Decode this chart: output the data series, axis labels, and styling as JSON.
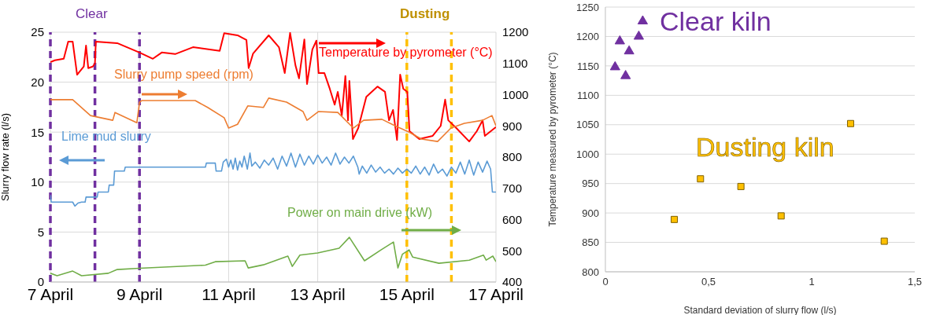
{
  "chart_data": [
    {
      "type": "line",
      "ylabel": "Slurry flow rate (l/s)",
      "xlim": [
        "--04-07",
        "--04-17"
      ],
      "xticks": [
        {
          "value": "--04-07",
          "label": "7 April"
        },
        {
          "value": "--04-09",
          "label": "9 April"
        },
        {
          "value": "--04-11",
          "label": "11 April"
        },
        {
          "value": "--04-13",
          "label": "13 April"
        },
        {
          "value": "--04-15",
          "label": "15 April"
        },
        {
          "value": "--04-17",
          "label": "17 April"
        }
      ],
      "ylim": [
        0,
        25
      ],
      "yticks": [
        0,
        5,
        10,
        15,
        20,
        25
      ],
      "y2lim": [
        400,
        1200
      ],
      "y2ticks": [
        400,
        500,
        600,
        700,
        800,
        900,
        1000,
        1100,
        1200
      ],
      "grid": true,
      "annotations": [
        "Clear",
        "Dusting"
      ],
      "ref_lines": [
        {
          "axis": "x",
          "value": "--04-07",
          "label": null,
          "color": "#7030a0",
          "line_style": "dashed"
        },
        {
          "axis": "x",
          "value": "--04-08",
          "label": null,
          "color": "#7030a0",
          "line_style": "dashed"
        },
        {
          "axis": "x",
          "value": "--04-09",
          "label": null,
          "color": "#7030a0",
          "line_style": "dashed"
        },
        {
          "axis": "x",
          "value": "--04-15",
          "label": null,
          "color": "#ffc000",
          "line_style": "dashed"
        },
        {
          "axis": "x",
          "value": "--04-16",
          "label": null,
          "color": "#ffc000",
          "line_style": "dashed"
        }
      ],
      "series": [
        {
          "name": "Temperature by pyrometer (°C)",
          "color": "#ff0000",
          "axis": "y2",
          "x": [
            "--04-07",
            "--04-07T02:24",
            "--04-07T07:12",
            "--04-07T09:36",
            "--04-07T12:00",
            "--04-07T14:24",
            "--04-07T18:00",
            "--04-07T19:12",
            "--04-07T20:24",
            "--04-07T22:48",
            "--04-08",
            "--04-08T00:29",
            "--04-08T12:00",
            "--04-09",
            "--04-09T07:12",
            "--04-09T12:00",
            "--04-09T19:12",
            "--04-10T04:48",
            "--04-10T19:12",
            "--04-10T21:36",
            "--04-11T04:48",
            "--04-11T09:36",
            "--04-11T10:48",
            "--04-11T13:12",
            "--04-11T21:36",
            "--04-12T03:07",
            "--04-12T06:14",
            "--04-12T09:07",
            "--04-12T12:00",
            "--04-12T13:55",
            "--04-12T16:48",
            "--04-12T18:14",
            "--04-12T21:07",
            "--04-12T23:17",
            "--04-13T00:29",
            "--04-13T03:36",
            "--04-13T06:29",
            "--04-13T09:07",
            "--04-13T10:48",
            "--04-13T12:58",
            "--04-13T14:53",
            "--04-13T16:19",
            "--04-13T17:02",
            "--04-13T18:58",
            "--04-13T21:50",
            "--04-14T02:10",
            "--04-14T08:10",
            "--04-14T12:14",
            "--04-14T14:24",
            "--04-14T16:34",
            "--04-14T18:43",
            "--04-14T20:24",
            "--04-14T22:05",
            "--04-15T00:14",
            "--04-15T01:26",
            "--04-15T06:43",
            "--04-15T13:55",
            "--04-15T18:14",
            "--04-15T20:38",
            "--04-15T22:19",
            "--04-16T02:38",
            "--04-16T09:36",
            "--04-16T13:41",
            "--04-16T16:48",
            "--04-16T18:00",
            "--04-17"
          ],
          "values": [
            1104,
            1110,
            1115,
            1170,
            1170,
            1064,
            1090,
            1157,
            1085,
            1090,
            1100,
            1170,
            1165,
            1135,
            1115,
            1135,
            1130,
            1152,
            1140,
            1197,
            1190,
            1175,
            1085,
            1132,
            1190,
            1152,
            1069,
            1198,
            1094,
            1052,
            1177,
            1034,
            1145,
            1173,
            1069,
            1069,
            1019,
            968,
            1009,
            933,
            1060,
            918,
            1044,
            858,
            893,
            993,
            1026,
            1009,
            918,
            951,
            855,
            1064,
            1019,
            1009,
            883,
            858,
            868,
            900,
            984,
            918,
            893,
            850,
            883,
            918,
            868,
            896
          ]
        },
        {
          "name": "Slurry pump speed (rpm)",
          "color": "#ed7d31",
          "axis": "y2",
          "x": [
            "--04-07",
            "--04-07T12:00",
            "--04-07T21:36",
            "--04-08T09:36",
            "--04-08T10:48",
            "--04-08T22:34",
            "--04-09",
            "--04-09T01:12",
            "--04-10T06:00",
            "--04-10T12:43",
            "--04-10T21:36",
            "--04-11",
            "--04-11T04:48",
            "--04-11T10:19",
            "--04-11T18:43",
            "--04-11T21:36",
            "--04-12T07:12",
            "--04-12T16:05",
            "--04-12T18:14",
            "--04-13T00:29",
            "--04-13T10:48",
            "--04-13T19:12",
            "--04-14T00:43",
            "--04-14T10:34",
            "--04-14T17:46",
            "--04-15T01:12",
            "--04-15T07:55",
            "--04-15T16:34",
            "--04-15T23:46",
            "--04-16T06:58",
            "--04-16T16:48",
            "--04-16T21:50",
            "--04-17"
          ],
          "values": [
            984,
            984,
            933,
            918,
            943,
            910,
            976,
            981,
            981,
            959,
            926,
            893,
            905,
            964,
            959,
            989,
            976,
            946,
            918,
            946,
            943,
            893,
            918,
            921,
            900,
            880,
            858,
            850,
            893,
            908,
            918,
            933,
            900
          ]
        },
        {
          "name": "Lime mud slurry",
          "color": "#5b9bd5",
          "x": [
            "--04-07",
            "--04-07T00:29",
            "--04-07T12:00",
            "--04-07T13:12",
            "--04-07T14:53",
            "--04-07T16:48",
            "--04-07T18:43",
            "--04-07T19:12",
            "--04-08T01:12",
            "--04-08T01:41",
            "--04-08T07:12",
            "--04-08T07:41",
            "--04-08T10:05",
            "--04-08T10:34",
            "--04-08T15:50",
            "--04-08T16:19",
            "--04-10T11:31",
            "--04-10T12:00",
            "--04-10T16:48",
            "--04-10T17:17",
            "--04-10T20:10",
            "--04-10T21:07",
            "--04-10T22:48",
            "--04-11",
            "--04-11T01:12",
            "--04-11T02:24",
            "--04-11T03:36",
            "--04-11T04:48",
            "--04-11T06:00",
            "--04-11T07:12",
            "--04-11T08:24",
            "--04-11T10:05",
            "--04-11T11:31",
            "--04-11T12:29",
            "--04-11T14:24",
            "--04-11T16:48",
            "--04-11T19:12",
            "--04-11T21:36",
            "--04-12",
            "--04-12T02:24",
            "--04-12T04:48",
            "--04-12T07:12",
            "--04-12T09:36",
            "--04-12T12:00",
            "--04-12T14:24",
            "--04-12T16:48",
            "--04-12T19:12",
            "--04-12T21:36",
            "--04-13",
            "--04-13T02:24",
            "--04-13T04:48",
            "--04-13T07:12",
            "--04-13T09:36",
            "--04-13T12:00",
            "--04-13T14:24",
            "--04-13T16:48",
            "--04-13T19:12",
            "--04-13T21:36",
            "--04-13T22:19",
            "--04-14",
            "--04-14T02:24",
            "--04-14T04:48",
            "--04-14T07:12",
            "--04-14T09:36",
            "--04-14T12:00",
            "--04-14T14:24",
            "--04-14T16:48",
            "--04-14T19:12",
            "--04-14T21:36",
            "--04-15",
            "--04-15T02:24",
            "--04-15T04:48",
            "--04-15T07:12",
            "--04-15T09:36",
            "--04-15T12:00",
            "--04-15T14:24",
            "--04-15T16:48",
            "--04-15T19:12",
            "--04-15T21:36",
            "--04-16",
            "--04-16T02:24",
            "--04-16T04:48",
            "--04-16T07:12",
            "--04-16T09:36",
            "--04-16T12:00",
            "--04-16T14:24",
            "--04-16T16:48",
            "--04-16T19:12",
            "--04-16T21:07",
            "--04-16T22:05",
            "--04-17"
          ],
          "values": [
            8.7,
            8.0,
            8.0,
            7.6,
            7.9,
            8.0,
            8.0,
            8.5,
            8.5,
            9.0,
            9.0,
            9.7,
            9.7,
            11.1,
            11.1,
            11.5,
            11.5,
            11.9,
            11.9,
            11.1,
            11.1,
            12.0,
            12.3,
            11.5,
            12.2,
            11.3,
            12.4,
            11.2,
            12.1,
            11.5,
            12.6,
            11.3,
            12.9,
            11.6,
            12.0,
            11.4,
            12.2,
            11.7,
            12.4,
            11.3,
            12.6,
            11.6,
            12.9,
            11.5,
            12.8,
            11.7,
            12.6,
            11.8,
            12.7,
            11.9,
            12.5,
            11.7,
            12.9,
            11.8,
            12.5,
            11.9,
            12.6,
            11.5,
            10.8,
            11.6,
            10.9,
            11.7,
            11.0,
            11.5,
            10.9,
            11.3,
            10.8,
            11.4,
            10.9,
            11.3,
            10.9,
            11.6,
            10.8,
            11.5,
            10.7,
            11.8,
            10.9,
            11.3,
            10.6,
            11.5,
            10.9,
            12.0,
            10.8,
            12.2,
            10.7,
            12.0,
            11.0,
            12.1,
            11.3,
            9.0,
            9.0
          ]
        },
        {
          "name": "Power on main drive (kW)",
          "color": "#70ad47",
          "axis": "y2",
          "x": [
            "--04-07",
            "--04-07T03:36",
            "--04-07T12:00",
            "--04-07T16:48",
            "--04-08T07:12",
            "--04-08T12:00",
            "--04-09",
            "--04-10T11:31",
            "--04-10T16:48",
            "--04-11T08:53",
            "--04-11T10:34",
            "--04-11T18:43",
            "--04-12T07:55",
            "--04-12T10:19",
            "--04-12T14:24",
            "--04-13",
            "--04-13T11:31",
            "--04-13T17:02",
            "--04-14T01:12",
            "--04-14T10:05",
            "--04-14T16:48",
            "--04-14T19:12",
            "--04-14T21:36",
            "--04-15T01:12",
            "--04-15T03:07",
            "--04-15T17:17",
            "--04-16T09:36",
            "--04-16T17:17",
            "--04-16T18:43",
            "--04-16T22:19",
            "--04-17"
          ],
          "values": [
            428,
            420,
            435,
            420,
            428,
            440,
            444,
            454,
            465,
            468,
            445,
            455,
            483,
            450,
            486,
            493,
            508,
            543,
            468,
            503,
            528,
            445,
            489,
            503,
            480,
            460,
            470,
            486,
            470,
            483,
            465
          ]
        }
      ]
    },
    {
      "type": "scatter",
      "xlabel": "Standard deviation of slurry flow (l/s)",
      "ylabel": "Temperature measured by pyrometer (°C)",
      "xlim": [
        0,
        1.5
      ],
      "xticks": [
        0,
        {
          "value": 0.5,
          "label": "0,5"
        },
        1,
        {
          "value": 1.5,
          "label": "1,5"
        }
      ],
      "ylim": [
        800,
        1250
      ],
      "yticks": [
        800,
        850,
        900,
        950,
        1000,
        1050,
        1100,
        1150,
        1200,
        1250
      ],
      "grid": "y",
      "series": [
        {
          "name": "Clear kiln",
          "color": "#7030a0",
          "marker": "triangle",
          "x": [
            0.047,
            0.07,
            0.098,
            0.115,
            0.162,
            0.181
          ],
          "values": [
            1148,
            1192,
            1133,
            1175,
            1200,
            1226
          ]
        },
        {
          "name": "Dusting kiln",
          "color": "#ffc000",
          "marker": "square",
          "x": [
            0.334,
            0.461,
            0.657,
            0.852,
            1.189,
            1.352
          ],
          "values": [
            889,
            958,
            945,
            895,
            1052,
            852
          ]
        }
      ]
    }
  ]
}
